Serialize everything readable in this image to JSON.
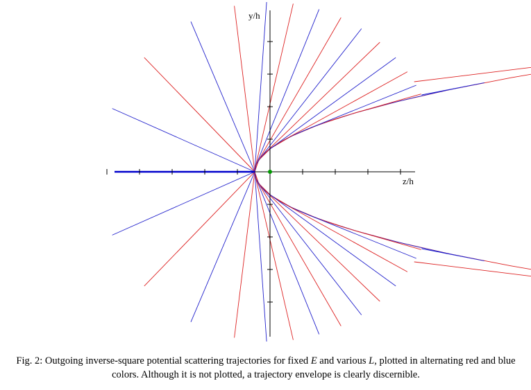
{
  "figure": {
    "y_label": "y/h",
    "z_label": "z/h",
    "caption": [
      "Fig. 2:  Outgoing inverse-square potential scattering trajectories for fixed ",
      "E",
      " and various ",
      "L",
      ", plotted in alternating red and blue colors.  Although it is not plotted, a trajectory envelope is clearly discernible."
    ]
  }
}
